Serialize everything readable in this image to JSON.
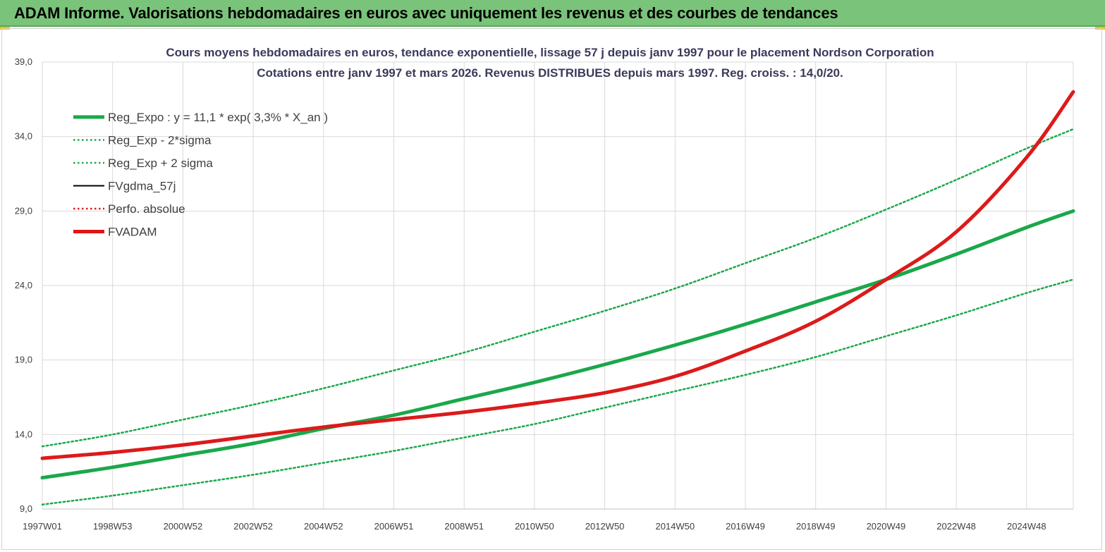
{
  "banner": {
    "title": "ADAM Informe. Valorisations hebdomadaires en euros avec uniquement les revenus et des courbes de tendances"
  },
  "chart_data": {
    "type": "line",
    "title": "Cours moyens hebdomadaires en euros, tendance exponentielle, lissage 57 j depuis janv 1997 pour le placement Nordson Corporation",
    "subtitle": "Cotations entre janv 1997 et mars 2026. Revenus DISTRIBUES depuis mars 1997. Reg. croiss. : 14,0/20.",
    "xlabel": "",
    "ylabel": "",
    "ylim": [
      9.0,
      39.0
    ],
    "yticks": [
      "9,0",
      "14,0",
      "19,0",
      "24,0",
      "29,0",
      "34,0",
      "39,0"
    ],
    "x_tick_labels": [
      "1997W01",
      "1998W53",
      "2000W52",
      "2002W52",
      "2004W52",
      "2006W51",
      "2008W51",
      "2010W50",
      "2012W50",
      "2014W50",
      "2016W49",
      "2018W49",
      "2020W49",
      "2022W48",
      "2024W48"
    ],
    "grid": true,
    "legend_position": "top-left",
    "x": [
      "1997W01",
      "1998W53",
      "2000W52",
      "2002W52",
      "2004W52",
      "2006W51",
      "2008W51",
      "2010W50",
      "2012W50",
      "2014W50",
      "2016W49",
      "2018W49",
      "2020W49",
      "2022W48",
      "2024W48",
      "2026W12"
    ],
    "series": [
      {
        "name": "Reg_Expo : y = 11,1 * exp( 3,3% *  X_an )",
        "color": "#1aa84a",
        "style": "solid-thick",
        "values": [
          11.1,
          11.8,
          12.6,
          13.4,
          14.4,
          15.3,
          16.4,
          17.5,
          18.7,
          20.0,
          21.4,
          22.9,
          24.4,
          26.1,
          27.9,
          29.0
        ]
      },
      {
        "name": "Reg_Exp - 2*sigma",
        "color": "#1aa84a",
        "style": "dotted",
        "values": [
          9.3,
          9.9,
          10.6,
          11.3,
          12.1,
          12.9,
          13.8,
          14.7,
          15.8,
          16.9,
          18.0,
          19.2,
          20.6,
          22.0,
          23.5,
          24.4
        ]
      },
      {
        "name": "Reg_Exp + 2 sigma",
        "color": "#1aa84a",
        "style": "dotted",
        "values": [
          13.2,
          14.0,
          15.0,
          16.0,
          17.1,
          18.3,
          19.5,
          20.9,
          22.3,
          23.8,
          25.5,
          27.2,
          29.1,
          31.1,
          33.2,
          34.5
        ]
      },
      {
        "name": "FVgdma_57j",
        "color": "#000000",
        "style": "solid",
        "values": [
          12.4,
          12.8,
          13.3,
          13.9,
          14.5,
          15.0,
          15.5,
          16.1,
          16.8,
          17.9,
          19.6,
          21.6,
          24.4,
          27.6,
          32.6,
          37.0
        ]
      },
      {
        "name": "Perfo. absolue",
        "color": "#d62020",
        "style": "dotted",
        "values": [
          12.4,
          12.8,
          13.3,
          13.9,
          14.5,
          15.0,
          15.5,
          16.1,
          16.8,
          17.9,
          19.6,
          21.6,
          24.4,
          27.6,
          32.6,
          37.0
        ]
      },
      {
        "name": "FVADAM",
        "color": "#e01515",
        "style": "solid-thick",
        "values": [
          12.4,
          12.8,
          13.3,
          13.9,
          14.5,
          15.0,
          15.5,
          16.1,
          16.8,
          17.9,
          19.6,
          21.6,
          24.4,
          27.6,
          32.6,
          37.0
        ]
      }
    ]
  },
  "colors": {
    "banner": "#7ac37a",
    "grid": "#d9d9d9",
    "trend": "#1aa84a",
    "fvadam": "#e01515"
  }
}
